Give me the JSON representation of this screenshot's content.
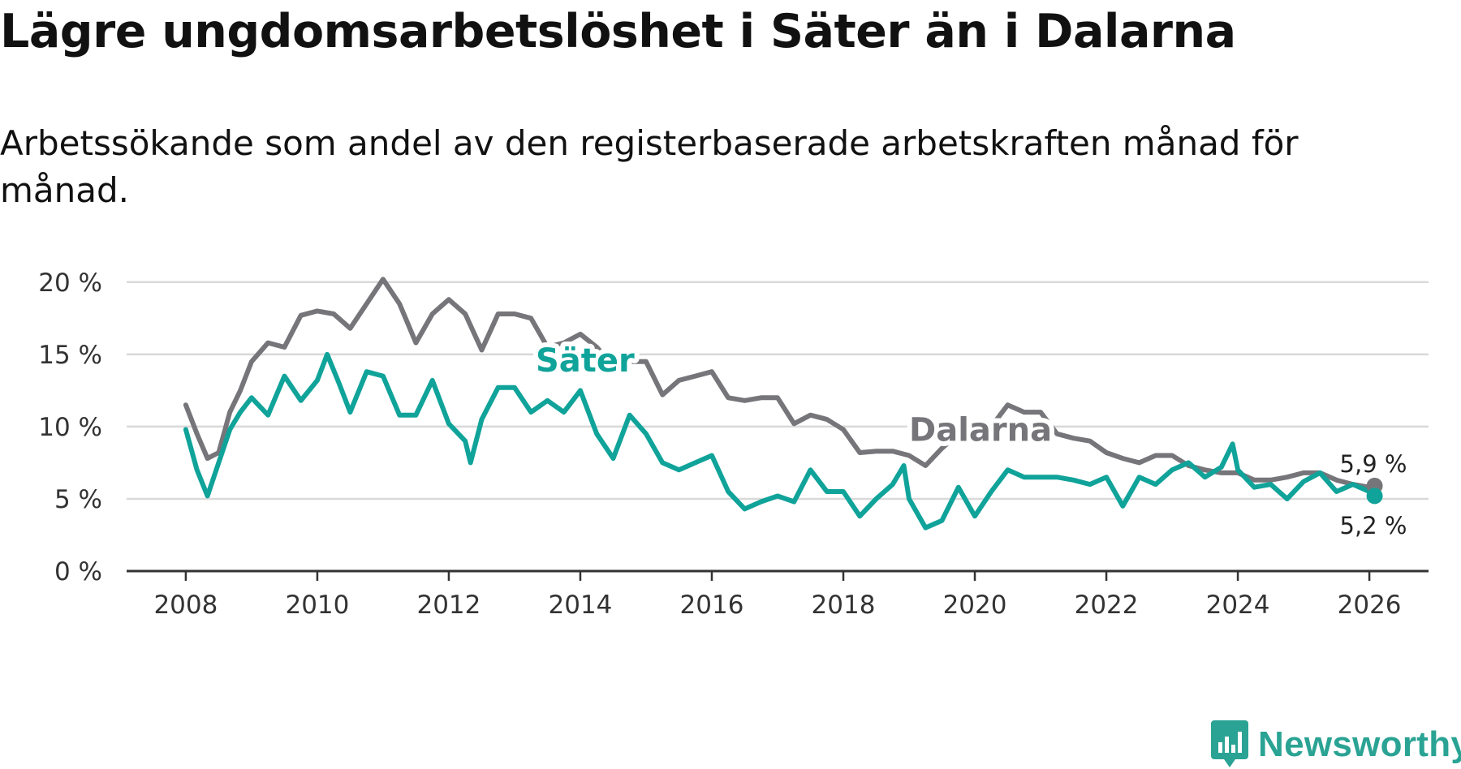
{
  "header": {
    "title": "Lägre ungdomsarbetslöshet i Säter än i Dalarna",
    "subtitle": "Arbetssökande som andel av den registerbaserade arbetskraften månad för månad."
  },
  "branding": {
    "logo_text": "Newsworthy"
  },
  "chart_data": {
    "type": "line",
    "title": "Lägre ungdomsarbetslöshet i Säter än i Dalarna",
    "subtitle": "Arbetssökande som andel av den registerbaserade arbetskraften månad för månad.",
    "xlabel": "",
    "ylabel": "",
    "xlim": [
      2007.1,
      2026.9
    ],
    "ylim": [
      0,
      21
    ],
    "x_ticks": [
      2008,
      2010,
      2012,
      2014,
      2016,
      2018,
      2020,
      2022,
      2024,
      2026
    ],
    "y_ticks": [
      {
        "value": 0,
        "label": "0 %"
      },
      {
        "value": 5,
        "label": "5 %"
      },
      {
        "value": 10,
        "label": "10 %"
      },
      {
        "value": 15,
        "label": "15 %"
      },
      {
        "value": 20,
        "label": "20 %"
      }
    ],
    "grid": true,
    "series": [
      {
        "name": "Dalarna",
        "color": "#76757a",
        "label": "Dalarna",
        "end_label": "5,9 %",
        "points": [
          [
            2008.0,
            11.5
          ],
          [
            2008.17,
            9.5
          ],
          [
            2008.33,
            7.8
          ],
          [
            2008.5,
            8.2
          ],
          [
            2008.67,
            11.0
          ],
          [
            2008.83,
            12.5
          ],
          [
            2009.0,
            14.5
          ],
          [
            2009.25,
            15.8
          ],
          [
            2009.5,
            15.5
          ],
          [
            2009.75,
            17.7
          ],
          [
            2010.0,
            18.0
          ],
          [
            2010.25,
            17.8
          ],
          [
            2010.5,
            16.8
          ],
          [
            2010.75,
            18.5
          ],
          [
            2011.0,
            20.2
          ],
          [
            2011.25,
            18.5
          ],
          [
            2011.5,
            15.8
          ],
          [
            2011.75,
            17.8
          ],
          [
            2012.0,
            18.8
          ],
          [
            2012.25,
            17.8
          ],
          [
            2012.5,
            15.3
          ],
          [
            2012.75,
            17.8
          ],
          [
            2013.0,
            17.8
          ],
          [
            2013.25,
            17.5
          ],
          [
            2013.5,
            15.5
          ],
          [
            2013.75,
            15.8
          ],
          [
            2014.0,
            16.4
          ],
          [
            2014.25,
            15.5
          ],
          [
            2014.5,
            14.2
          ],
          [
            2014.75,
            14.5
          ],
          [
            2015.0,
            14.5
          ],
          [
            2015.25,
            12.2
          ],
          [
            2015.5,
            13.2
          ],
          [
            2015.75,
            13.5
          ],
          [
            2016.0,
            13.8
          ],
          [
            2016.25,
            12.0
          ],
          [
            2016.5,
            11.8
          ],
          [
            2016.75,
            12.0
          ],
          [
            2017.0,
            12.0
          ],
          [
            2017.25,
            10.2
          ],
          [
            2017.5,
            10.8
          ],
          [
            2017.75,
            10.5
          ],
          [
            2018.0,
            9.8
          ],
          [
            2018.25,
            8.2
          ],
          [
            2018.5,
            8.3
          ],
          [
            2018.75,
            8.3
          ],
          [
            2019.0,
            8.0
          ],
          [
            2019.25,
            7.3
          ],
          [
            2019.5,
            8.5
          ],
          [
            2019.75,
            9.5
          ],
          [
            2020.0,
            10.0
          ],
          [
            2020.25,
            10.0
          ],
          [
            2020.5,
            11.5
          ],
          [
            2020.75,
            11.0
          ],
          [
            2021.0,
            11.0
          ],
          [
            2021.25,
            9.5
          ],
          [
            2021.5,
            9.2
          ],
          [
            2021.75,
            9.0
          ],
          [
            2022.0,
            8.2
          ],
          [
            2022.25,
            7.8
          ],
          [
            2022.5,
            7.5
          ],
          [
            2022.75,
            8.0
          ],
          [
            2023.0,
            8.0
          ],
          [
            2023.25,
            7.3
          ],
          [
            2023.5,
            7.0
          ],
          [
            2023.75,
            6.8
          ],
          [
            2024.0,
            6.8
          ],
          [
            2024.25,
            6.3
          ],
          [
            2024.5,
            6.3
          ],
          [
            2024.75,
            6.5
          ],
          [
            2025.0,
            6.8
          ],
          [
            2025.25,
            6.8
          ],
          [
            2025.5,
            6.3
          ],
          [
            2025.75,
            6.0
          ],
          [
            2026.0,
            5.8
          ],
          [
            2026.08,
            5.9
          ]
        ]
      },
      {
        "name": "Säter",
        "color": "#10a39a",
        "label": "Säter",
        "end_label": "5,2 %",
        "points": [
          [
            2008.0,
            9.8
          ],
          [
            2008.17,
            7.0
          ],
          [
            2008.33,
            5.2
          ],
          [
            2008.5,
            7.5
          ],
          [
            2008.67,
            9.8
          ],
          [
            2008.83,
            11.0
          ],
          [
            2009.0,
            12.0
          ],
          [
            2009.25,
            10.8
          ],
          [
            2009.5,
            13.5
          ],
          [
            2009.75,
            11.8
          ],
          [
            2010.0,
            13.2
          ],
          [
            2010.15,
            15.0
          ],
          [
            2010.33,
            13.0
          ],
          [
            2010.5,
            11.0
          ],
          [
            2010.75,
            13.8
          ],
          [
            2011.0,
            13.5
          ],
          [
            2011.25,
            10.8
          ],
          [
            2011.5,
            10.8
          ],
          [
            2011.75,
            13.2
          ],
          [
            2012.0,
            10.2
          ],
          [
            2012.25,
            9.0
          ],
          [
            2012.33,
            7.5
          ],
          [
            2012.5,
            10.5
          ],
          [
            2012.75,
            12.7
          ],
          [
            2013.0,
            12.7
          ],
          [
            2013.25,
            11.0
          ],
          [
            2013.5,
            11.8
          ],
          [
            2013.75,
            11.0
          ],
          [
            2014.0,
            12.5
          ],
          [
            2014.25,
            9.5
          ],
          [
            2014.5,
            7.8
          ],
          [
            2014.75,
            10.8
          ],
          [
            2015.0,
            9.5
          ],
          [
            2015.25,
            7.5
          ],
          [
            2015.5,
            7.0
          ],
          [
            2015.75,
            7.5
          ],
          [
            2016.0,
            8.0
          ],
          [
            2016.25,
            5.5
          ],
          [
            2016.5,
            4.3
          ],
          [
            2016.75,
            4.8
          ],
          [
            2017.0,
            5.2
          ],
          [
            2017.25,
            4.8
          ],
          [
            2017.5,
            7.0
          ],
          [
            2017.75,
            5.5
          ],
          [
            2018.0,
            5.5
          ],
          [
            2018.25,
            3.8
          ],
          [
            2018.5,
            5.0
          ],
          [
            2018.75,
            6.0
          ],
          [
            2018.92,
            7.3
          ],
          [
            2019.0,
            5.0
          ],
          [
            2019.25,
            3.0
          ],
          [
            2019.5,
            3.5
          ],
          [
            2019.75,
            5.8
          ],
          [
            2020.0,
            3.8
          ],
          [
            2020.25,
            5.5
          ],
          [
            2020.5,
            7.0
          ],
          [
            2020.75,
            6.5
          ],
          [
            2021.0,
            6.5
          ],
          [
            2021.25,
            6.5
          ],
          [
            2021.5,
            6.3
          ],
          [
            2021.75,
            6.0
          ],
          [
            2022.0,
            6.5
          ],
          [
            2022.25,
            4.5
          ],
          [
            2022.5,
            6.5
          ],
          [
            2022.75,
            6.0
          ],
          [
            2023.0,
            7.0
          ],
          [
            2023.25,
            7.5
          ],
          [
            2023.5,
            6.5
          ],
          [
            2023.75,
            7.2
          ],
          [
            2023.92,
            8.8
          ],
          [
            2024.0,
            7.0
          ],
          [
            2024.25,
            5.8
          ],
          [
            2024.5,
            6.0
          ],
          [
            2024.75,
            5.0
          ],
          [
            2025.0,
            6.2
          ],
          [
            2025.25,
            6.8
          ],
          [
            2025.5,
            5.5
          ],
          [
            2025.75,
            6.0
          ],
          [
            2026.0,
            5.5
          ],
          [
            2026.08,
            5.2
          ]
        ]
      }
    ]
  }
}
